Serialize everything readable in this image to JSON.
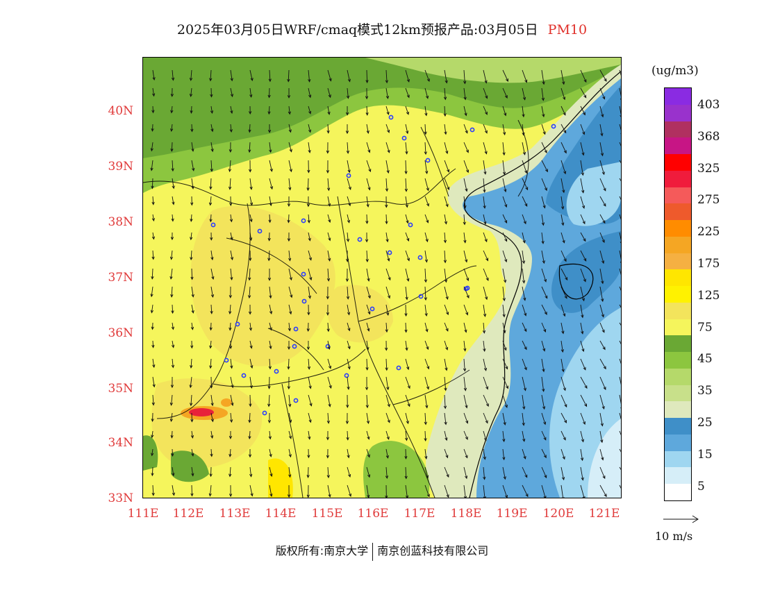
{
  "header": {
    "title": "2025年03月05日WRF/cmaq模式12km预报产品:03月05日",
    "pollutant": "PM10"
  },
  "axes": {
    "lat_ticks": [
      "40N",
      "39N",
      "38N",
      "37N",
      "36N",
      "35N",
      "34N",
      "33N"
    ],
    "lon_ticks": [
      "111E",
      "112E",
      "113E",
      "114E",
      "115E",
      "116E",
      "117E",
      "118E",
      "119E",
      "120E",
      "121E"
    ]
  },
  "legend": {
    "unit": "(ug/m3)",
    "labels": [
      "403",
      "368",
      "325",
      "275",
      "225",
      "175",
      "125",
      "75",
      "45",
      "35",
      "25",
      "15",
      "5"
    ],
    "colors_top_to_bottom": [
      "#8a2be2",
      "#9932cc",
      "#b03060",
      "#c71585",
      "#ff0000",
      "#f01c3c",
      "#f55a5a",
      "#ee5a2c",
      "#ff8c00",
      "#f5a623",
      "#f5b042",
      "#ffe600",
      "#fff200",
      "#f3e45c",
      "#f5f55c",
      "#6aa834",
      "#8cc63f",
      "#b5d96a",
      "#c8e08a",
      "#dfe9bd",
      "#3f8fc8",
      "#5ea8dc",
      "#9fd6f0",
      "#d6eef8",
      "#ffffff"
    ],
    "vector_label": "10 m/s"
  },
  "map": {
    "colors": {
      "yellow": "#f5f55c",
      "orange": "#f3e45c",
      "hot": "#f5a623",
      "red": "#e8223a",
      "green1": "#6aa834",
      "green2": "#8cc63f",
      "green3": "#b5d96a",
      "pale": "#dfe9bd",
      "blue1": "#3f8fc8",
      "blue2": "#5ea8dc",
      "blue3": "#9fd6f0",
      "blue4": "#d6eef8"
    },
    "stations_icon": "circle-marker-icon"
  },
  "footer": {
    "left": "版权所有:南京大学",
    "right": "南京创蓝科技有限公司"
  }
}
